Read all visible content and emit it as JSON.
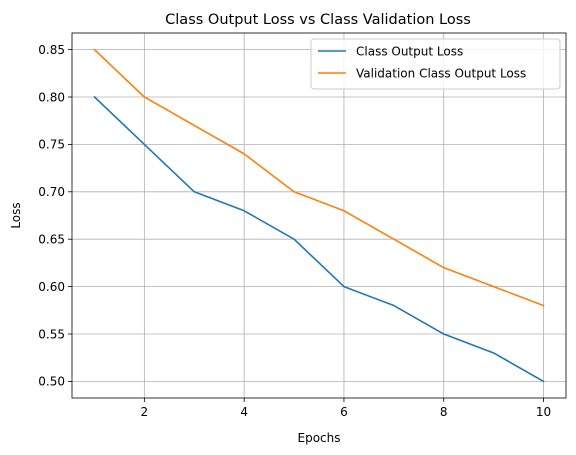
{
  "chart_data": {
    "type": "line",
    "title": "Class Output Loss vs Class Validation Loss",
    "xlabel": "Epochs",
    "ylabel": "Loss",
    "x": [
      1,
      2,
      3,
      4,
      5,
      6,
      7,
      8,
      9,
      10
    ],
    "xticks": [
      2,
      4,
      6,
      8,
      10
    ],
    "yticks": [
      "0.50",
      "0.55",
      "0.60",
      "0.65",
      "0.70",
      "0.75",
      "0.80",
      "0.85"
    ],
    "xlim": [
      0.55,
      10.45
    ],
    "ylim": [
      0.4825,
      0.8675
    ],
    "grid": true,
    "legend_position": "top-right",
    "series": [
      {
        "name": "Class Output Loss",
        "color": "#1f77b4",
        "values": [
          0.8,
          0.75,
          0.7,
          0.68,
          0.65,
          0.6,
          0.58,
          0.55,
          0.53,
          0.5
        ]
      },
      {
        "name": "Validation Class Output Loss",
        "color": "#ff7f0e",
        "values": [
          0.85,
          0.8,
          0.77,
          0.74,
          0.7,
          0.68,
          0.65,
          0.62,
          0.6,
          0.58
        ]
      }
    ]
  }
}
